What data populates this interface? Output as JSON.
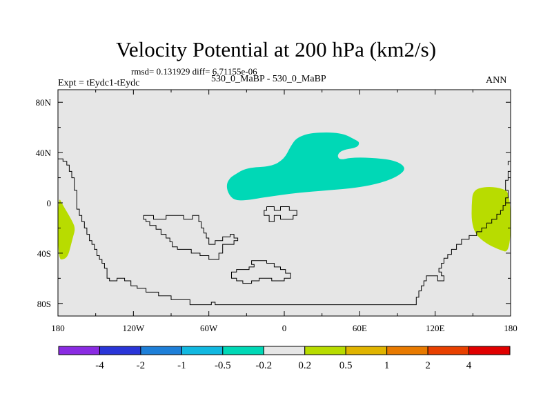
{
  "header": {
    "title": "Velocity Potential at 200 hPa (km2/s)",
    "stats": "rmsd= 0.131929 diff= 6.71155e-06",
    "expt": "Expt = tEydc1-tEydc",
    "case": "530_0_MaBP - 530_0_MaBP",
    "season": "ANN"
  },
  "chart_data": {
    "type": "heatmap",
    "projection": "cylindrical-equidistant",
    "title": "Velocity Potential at 200 hPa (km2/s)",
    "xlim": [
      -180,
      180
    ],
    "ylim": [
      -90,
      90
    ],
    "x_ticks": [
      {
        "value": -180,
        "label": "180"
      },
      {
        "value": -120,
        "label": "120W"
      },
      {
        "value": -60,
        "label": "60W"
      },
      {
        "value": 0,
        "label": "0"
      },
      {
        "value": 60,
        "label": "60E"
      },
      {
        "value": 120,
        "label": "120E"
      },
      {
        "value": 180,
        "label": "180"
      }
    ],
    "y_ticks": [
      {
        "value": 80,
        "label": "80N"
      },
      {
        "value": 40,
        "label": "40N"
      },
      {
        "value": 0,
        "label": "0"
      },
      {
        "value": -40,
        "label": "40S"
      },
      {
        "value": -80,
        "label": "80S"
      }
    ],
    "background_color": "#e6e6e6",
    "colorbar": {
      "colors": [
        "#8a2be2",
        "#2a35d8",
        "#1e7fd8",
        "#12b8e0",
        "#00d8b6",
        "#e6e6e6",
        "#b8dc00",
        "#e0b400",
        "#e87a00",
        "#e84000",
        "#e00000"
      ],
      "labels": [
        "-4",
        "-2",
        "-1",
        "-0.5",
        "-0.2",
        "0.2",
        "0.5",
        "1",
        "2",
        "4"
      ]
    },
    "regions": [
      {
        "name": "negative-anomaly-north-atlantic-europe",
        "level": "-0.5 to -0.2",
        "color": "#00d8b6",
        "outline": [
          [
            -40,
            22
          ],
          [
            -30,
            28
          ],
          [
            -10,
            29
          ],
          [
            0,
            35
          ],
          [
            5,
            45
          ],
          [
            10,
            52
          ],
          [
            22,
            56
          ],
          [
            45,
            56
          ],
          [
            57,
            50
          ],
          [
            60,
            48
          ],
          [
            58,
            44
          ],
          [
            46,
            42
          ],
          [
            42,
            38
          ],
          [
            44,
            34
          ],
          [
            53,
            36
          ],
          [
            68,
            36
          ],
          [
            88,
            34
          ],
          [
            97,
            28
          ],
          [
            92,
            22
          ],
          [
            78,
            16
          ],
          [
            58,
            12
          ],
          [
            35,
            10
          ],
          [
            10,
            8
          ],
          [
            -12,
            5
          ],
          [
            -30,
            2
          ],
          [
            -40,
            2
          ],
          [
            -45,
            8
          ],
          [
            -46,
            15
          ],
          [
            -43,
            20
          ]
        ]
      },
      {
        "name": "positive-anomaly-west-pacific",
        "level": "0.2 to 0.5",
        "color": "#b8dc00",
        "outline": [
          [
            150,
            10
          ],
          [
            160,
            13
          ],
          [
            172,
            12
          ],
          [
            180,
            8
          ],
          [
            180,
            -40
          ],
          [
            170,
            -37
          ],
          [
            160,
            -32
          ],
          [
            152,
            -25
          ],
          [
            149,
            -15
          ],
          [
            149,
            -2
          ]
        ]
      },
      {
        "name": "positive-anomaly-dateline-south",
        "level": "0.2 to 0.5",
        "color": "#b8dc00",
        "outline": [
          [
            -180,
            6
          ],
          [
            -176,
            -2
          ],
          [
            -170,
            -12
          ],
          [
            -166,
            -20
          ],
          [
            -168,
            -27
          ],
          [
            -170,
            -35
          ],
          [
            -172,
            -42
          ],
          [
            -175,
            -45
          ],
          [
            -180,
            -45
          ]
        ]
      }
    ],
    "continent_outlines": [
      {
        "name": "coastline-outline-west-continent",
        "points": [
          [
            -180,
            35
          ],
          [
            -176,
            35
          ],
          [
            -176,
            33
          ],
          [
            -173,
            33
          ],
          [
            -173,
            30
          ],
          [
            -171,
            30
          ],
          [
            -171,
            25
          ],
          [
            -169,
            25
          ],
          [
            -169,
            20
          ],
          [
            -167,
            20
          ],
          [
            -167,
            10
          ],
          [
            -165,
            10
          ],
          [
            -165,
            -5
          ],
          [
            -163,
            -5
          ],
          [
            -163,
            -10
          ],
          [
            -161,
            -10
          ],
          [
            -161,
            -15
          ],
          [
            -159,
            -15
          ],
          [
            -159,
            -20
          ],
          [
            -157,
            -20
          ],
          [
            -157,
            -25
          ],
          [
            -155,
            -25
          ],
          [
            -155,
            -30
          ],
          [
            -153,
            -30
          ],
          [
            -153,
            -33
          ],
          [
            -151,
            -33
          ],
          [
            -151,
            -37
          ],
          [
            -149,
            -37
          ],
          [
            -149,
            -42
          ],
          [
            -147,
            -42
          ],
          [
            -147,
            -45
          ],
          [
            -145,
            -45
          ],
          [
            -145,
            -48
          ],
          [
            -143,
            -48
          ],
          [
            -143,
            -52
          ],
          [
            -141,
            -52
          ],
          [
            -141,
            -60
          ],
          [
            -139,
            -60
          ],
          [
            -139,
            -62
          ],
          [
            -133,
            -62
          ],
          [
            -133,
            -60
          ],
          [
            -127,
            -60
          ],
          [
            -127,
            -62
          ],
          [
            -122,
            -62
          ],
          [
            -122,
            -66
          ],
          [
            -117,
            -66
          ],
          [
            -117,
            -68
          ],
          [
            -110,
            -68
          ],
          [
            -110,
            -71
          ],
          [
            -100,
            -71
          ],
          [
            -100,
            -74
          ],
          [
            -90,
            -74
          ],
          [
            -90,
            -77
          ],
          [
            -75,
            -77
          ],
          [
            -75,
            -81
          ],
          [
            -58,
            -81
          ],
          [
            -58,
            -79
          ],
          [
            -55,
            -79
          ],
          [
            -55,
            -81
          ],
          [
            105,
            -81
          ],
          [
            105,
            -75
          ],
          [
            107,
            -75
          ],
          [
            107,
            -70
          ],
          [
            109,
            -70
          ],
          [
            109,
            -66
          ],
          [
            111,
            -66
          ],
          [
            111,
            -62
          ],
          [
            113,
            -62
          ],
          [
            113,
            -58
          ],
          [
            122,
            -58
          ],
          [
            122,
            -62
          ],
          [
            127,
            -62
          ],
          [
            127,
            -58
          ],
          [
            125,
            -58
          ],
          [
            125,
            -55
          ],
          [
            123,
            -55
          ],
          [
            123,
            -52
          ],
          [
            125,
            -52
          ],
          [
            125,
            -48
          ],
          [
            127,
            -48
          ],
          [
            127,
            -44
          ],
          [
            130,
            -44
          ],
          [
            130,
            -41
          ],
          [
            133,
            -41
          ],
          [
            133,
            -37
          ],
          [
            137,
            -37
          ],
          [
            137,
            -33
          ],
          [
            141,
            -33
          ],
          [
            141,
            -29
          ],
          [
            147,
            -29
          ],
          [
            147,
            -26
          ],
          [
            153,
            -26
          ],
          [
            153,
            -23
          ],
          [
            157,
            -23
          ],
          [
            157,
            -20
          ],
          [
            161,
            -20
          ],
          [
            161,
            -16
          ],
          [
            165,
            -16
          ],
          [
            165,
            -13
          ],
          [
            169,
            -13
          ],
          [
            169,
            -9
          ],
          [
            172,
            -9
          ],
          [
            172,
            -6
          ],
          [
            174,
            -6
          ],
          [
            174,
            -2
          ],
          [
            176,
            -2
          ],
          [
            176,
            4
          ],
          [
            178,
            4
          ],
          [
            178,
            10
          ],
          [
            176,
            10
          ],
          [
            176,
            18
          ],
          [
            178,
            18
          ],
          [
            178,
            25
          ],
          [
            180,
            25
          ]
        ]
      },
      {
        "name": "coastline-outline-west-continent-upper-east",
        "points": [
          [
            180,
            33
          ],
          [
            178,
            33
          ],
          [
            178,
            30
          ]
        ]
      },
      {
        "name": "coastline-outline-central-continent",
        "points": [
          [
            -112,
            -10
          ],
          [
            -104,
            -10
          ],
          [
            -104,
            -13
          ],
          [
            -94,
            -13
          ],
          [
            -94,
            -10
          ],
          [
            -80,
            -10
          ],
          [
            -80,
            -13
          ],
          [
            -73,
            -13
          ],
          [
            -73,
            -10
          ],
          [
            -68,
            -10
          ],
          [
            -68,
            -15
          ],
          [
            -66,
            -15
          ],
          [
            -66,
            -20
          ],
          [
            -64,
            -20
          ],
          [
            -64,
            -24
          ],
          [
            -62,
            -24
          ],
          [
            -62,
            -28
          ],
          [
            -60,
            -28
          ],
          [
            -60,
            -33
          ],
          [
            -55,
            -33
          ],
          [
            -55,
            -30
          ],
          [
            -49,
            -30
          ],
          [
            -49,
            -27
          ],
          [
            -43,
            -27
          ],
          [
            -43,
            -25
          ],
          [
            -40,
            -25
          ],
          [
            -40,
            -28
          ],
          [
            -37,
            -28
          ],
          [
            -37,
            -30
          ],
          [
            -40,
            -30
          ],
          [
            -40,
            -33
          ],
          [
            -49,
            -33
          ],
          [
            -49,
            -40
          ],
          [
            -52,
            -40
          ],
          [
            -52,
            -45
          ],
          [
            -60,
            -45
          ],
          [
            -60,
            -42
          ],
          [
            -67,
            -42
          ],
          [
            -67,
            -40
          ],
          [
            -74,
            -40
          ],
          [
            -74,
            -37
          ],
          [
            -85,
            -37
          ],
          [
            -85,
            -35
          ],
          [
            -89,
            -35
          ],
          [
            -89,
            -31
          ],
          [
            -91,
            -31
          ],
          [
            -91,
            -28
          ],
          [
            -94,
            -28
          ],
          [
            -94,
            -25
          ],
          [
            -98,
            -25
          ],
          [
            -98,
            -21
          ],
          [
            -102,
            -21
          ],
          [
            -102,
            -18
          ],
          [
            -107,
            -18
          ],
          [
            -107,
            -15
          ],
          [
            -110,
            -15
          ],
          [
            -110,
            -13
          ],
          [
            -112,
            -13
          ],
          [
            -112,
            -10
          ]
        ]
      },
      {
        "name": "coastline-outline-small-north-island",
        "points": [
          [
            -14,
            -3
          ],
          [
            -8,
            -3
          ],
          [
            -8,
            -6
          ],
          [
            -3,
            -6
          ],
          [
            -3,
            -3
          ],
          [
            4,
            -3
          ],
          [
            4,
            -6
          ],
          [
            10,
            -6
          ],
          [
            10,
            -10
          ],
          [
            7,
            -10
          ],
          [
            7,
            -13
          ],
          [
            -3,
            -13
          ],
          [
            -3,
            -10
          ],
          [
            -8,
            -10
          ],
          [
            -8,
            -15
          ],
          [
            -12,
            -15
          ],
          [
            -12,
            -10
          ],
          [
            -16,
            -10
          ],
          [
            -16,
            -6
          ],
          [
            -14,
            -6
          ],
          [
            -14,
            -3
          ]
        ]
      },
      {
        "name": "coastline-outline-southern-islands",
        "points": [
          [
            -24,
            -46
          ],
          [
            -14,
            -46
          ],
          [
            -14,
            -48
          ],
          [
            -8,
            -48
          ],
          [
            -8,
            -51
          ],
          [
            -3,
            -51
          ],
          [
            -3,
            -53
          ],
          [
            1,
            -53
          ],
          [
            1,
            -56
          ],
          [
            5,
            -56
          ],
          [
            5,
            -60
          ],
          [
            0,
            -60
          ],
          [
            0,
            -62
          ],
          [
            -10,
            -62
          ],
          [
            -10,
            -60
          ],
          [
            -20,
            -60
          ],
          [
            -20,
            -62
          ],
          [
            -26,
            -62
          ],
          [
            -26,
            -64
          ],
          [
            -33,
            -64
          ],
          [
            -33,
            -62
          ],
          [
            -38,
            -62
          ],
          [
            -38,
            -60
          ],
          [
            -42,
            -60
          ],
          [
            -42,
            -55
          ],
          [
            -38,
            -55
          ],
          [
            -38,
            -53
          ],
          [
            -28,
            -53
          ],
          [
            -28,
            -51
          ],
          [
            -24,
            -51
          ],
          [
            -24,
            -49
          ],
          [
            -26,
            -49
          ],
          [
            -26,
            -46
          ],
          [
            -24,
            -46
          ]
        ]
      }
    ]
  }
}
